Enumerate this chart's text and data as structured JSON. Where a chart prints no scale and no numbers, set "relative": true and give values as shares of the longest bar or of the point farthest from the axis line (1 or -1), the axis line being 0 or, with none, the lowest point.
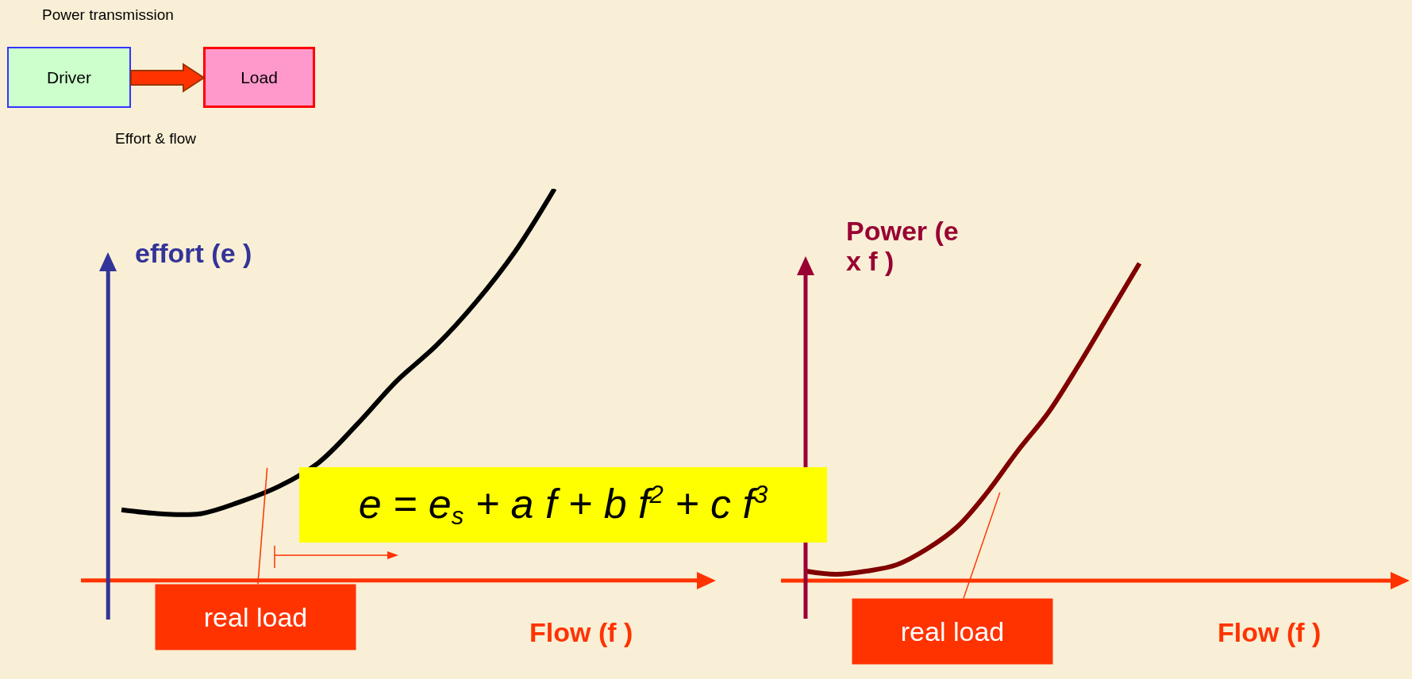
{
  "chart_data": [
    {
      "type": "line",
      "relative": true,
      "categories": [
        null,
        null,
        null,
        null,
        null,
        null,
        null,
        null,
        null,
        null,
        null,
        null
      ],
      "series": [
        {
          "color": "#000000",
          "values": [
            0.18,
            0.17,
            0.17,
            0.2,
            0.24,
            0.3,
            0.4,
            0.51,
            0.6,
            0.71,
            0.84,
            1
          ]
        }
      ],
      "ylabel": "effort (e )",
      "xlabel": "Flow (f )",
      "annotations": [
        "Power transmission",
        "Driver",
        "Load",
        "Effort & flow",
        "real load",
        "e = e$_{s}$ + a f + b f$^{2}$ + c f$^{3}$"
      ]
    },
    {
      "type": "line",
      "relative": true,
      "categories": [
        null,
        null,
        null,
        null,
        null,
        null,
        null,
        null,
        null,
        null,
        null,
        null
      ],
      "series": [
        {
          "color": "#800000",
          "values": [
            0.03,
            0.02,
            0.03,
            0.05,
            0.1,
            0.17,
            0.28,
            0.41,
            0.53,
            0.68,
            0.84,
            1
          ]
        }
      ],
      "ylabel": "Power (e x f )",
      "xlabel": "Flow (f )",
      "annotations": [
        "real load"
      ]
    }
  ]
}
